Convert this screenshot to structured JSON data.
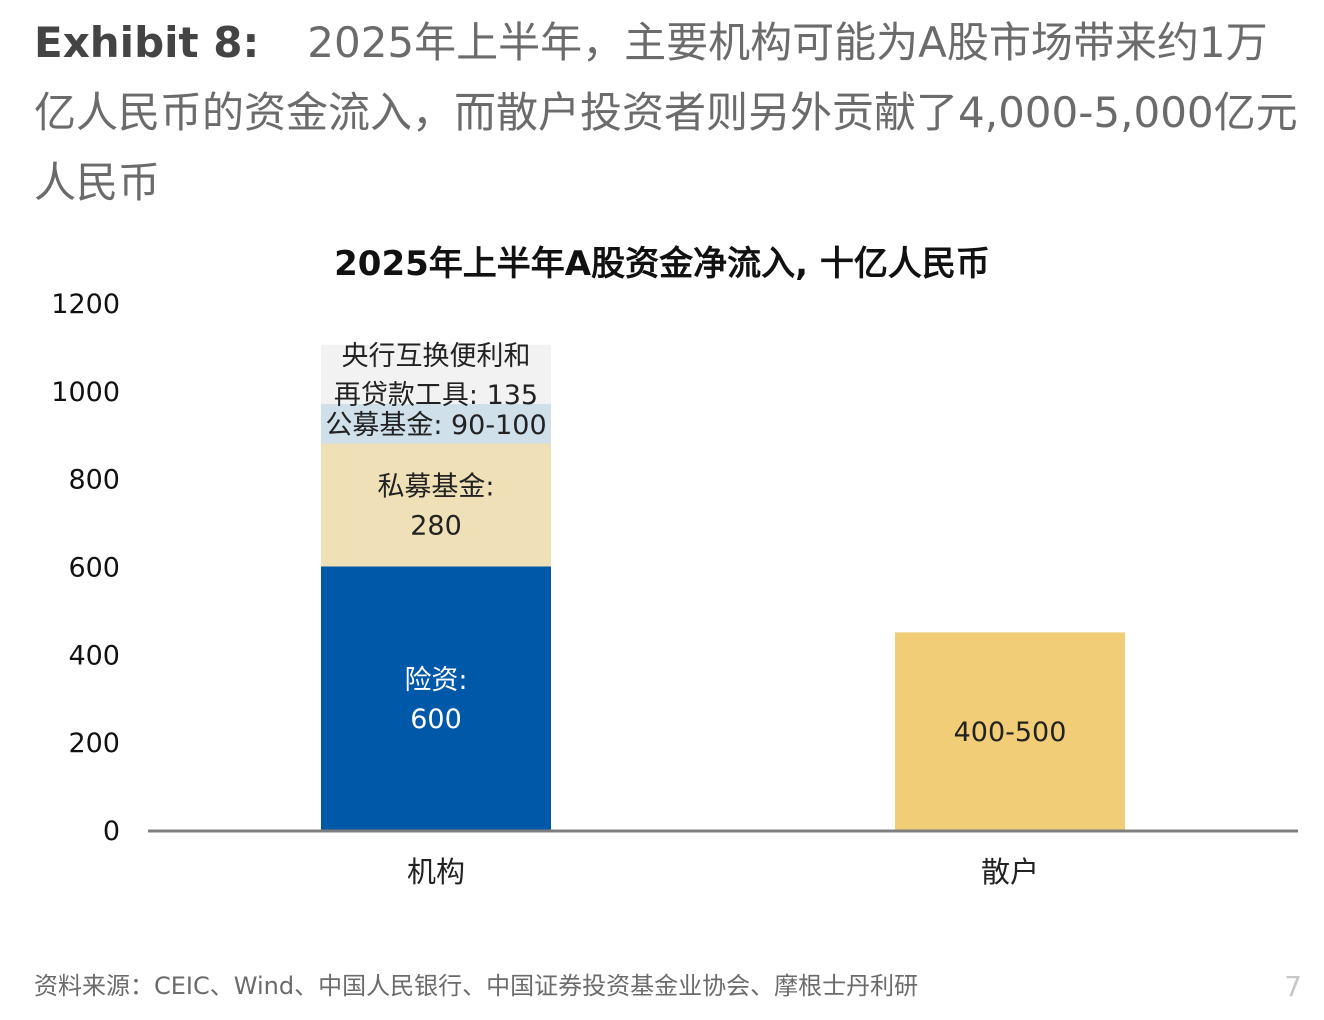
{
  "exhibit": {
    "label": "Exhibit 8:",
    "text": "2025年上半年，主要机构可能为A股市场带来约1万亿人民币的资金流入，而散户投资者则另外贡献了4,000-5,000亿元人民币"
  },
  "source": "资料来源：CEIC、Wind、中国人民银行、中国证券投资基金业协会、摩根士丹利研",
  "page_number": "7",
  "chart_data": {
    "type": "bar",
    "stacked": true,
    "title": "2025年上半年A股资金净流入, 十亿人民币",
    "xlabel": "",
    "ylabel": "",
    "ylim": [
      0,
      1200
    ],
    "yticks": [
      0,
      200,
      400,
      600,
      800,
      1000,
      1200
    ],
    "grid": false,
    "categories": [
      "机构",
      "散户"
    ],
    "bars": [
      {
        "category": "机构",
        "segments": [
          {
            "label_lines": [
              "险资:",
              "600"
            ],
            "value": 600,
            "color": "#0058A9",
            "text_color": "#ffffff"
          },
          {
            "label_lines": [
              "私募基金:",
              "280"
            ],
            "value": 280,
            "color": "#EFE0B8",
            "text_color": "#222222"
          },
          {
            "label_lines": [
              "公募基金: 90-100"
            ],
            "value": 90,
            "color": "#CFE0EA",
            "text_color": "#222222"
          },
          {
            "label_lines": [
              "央行互换便利和",
              "再贷款工具: 135"
            ],
            "value": 135,
            "color": "#F2F2F2",
            "text_color": "#222222"
          }
        ]
      },
      {
        "category": "散户",
        "segments": [
          {
            "label_lines": [
              "400-500"
            ],
            "value": 450,
            "color": "#F0CD76",
            "text_color": "#222222"
          }
        ]
      }
    ]
  }
}
